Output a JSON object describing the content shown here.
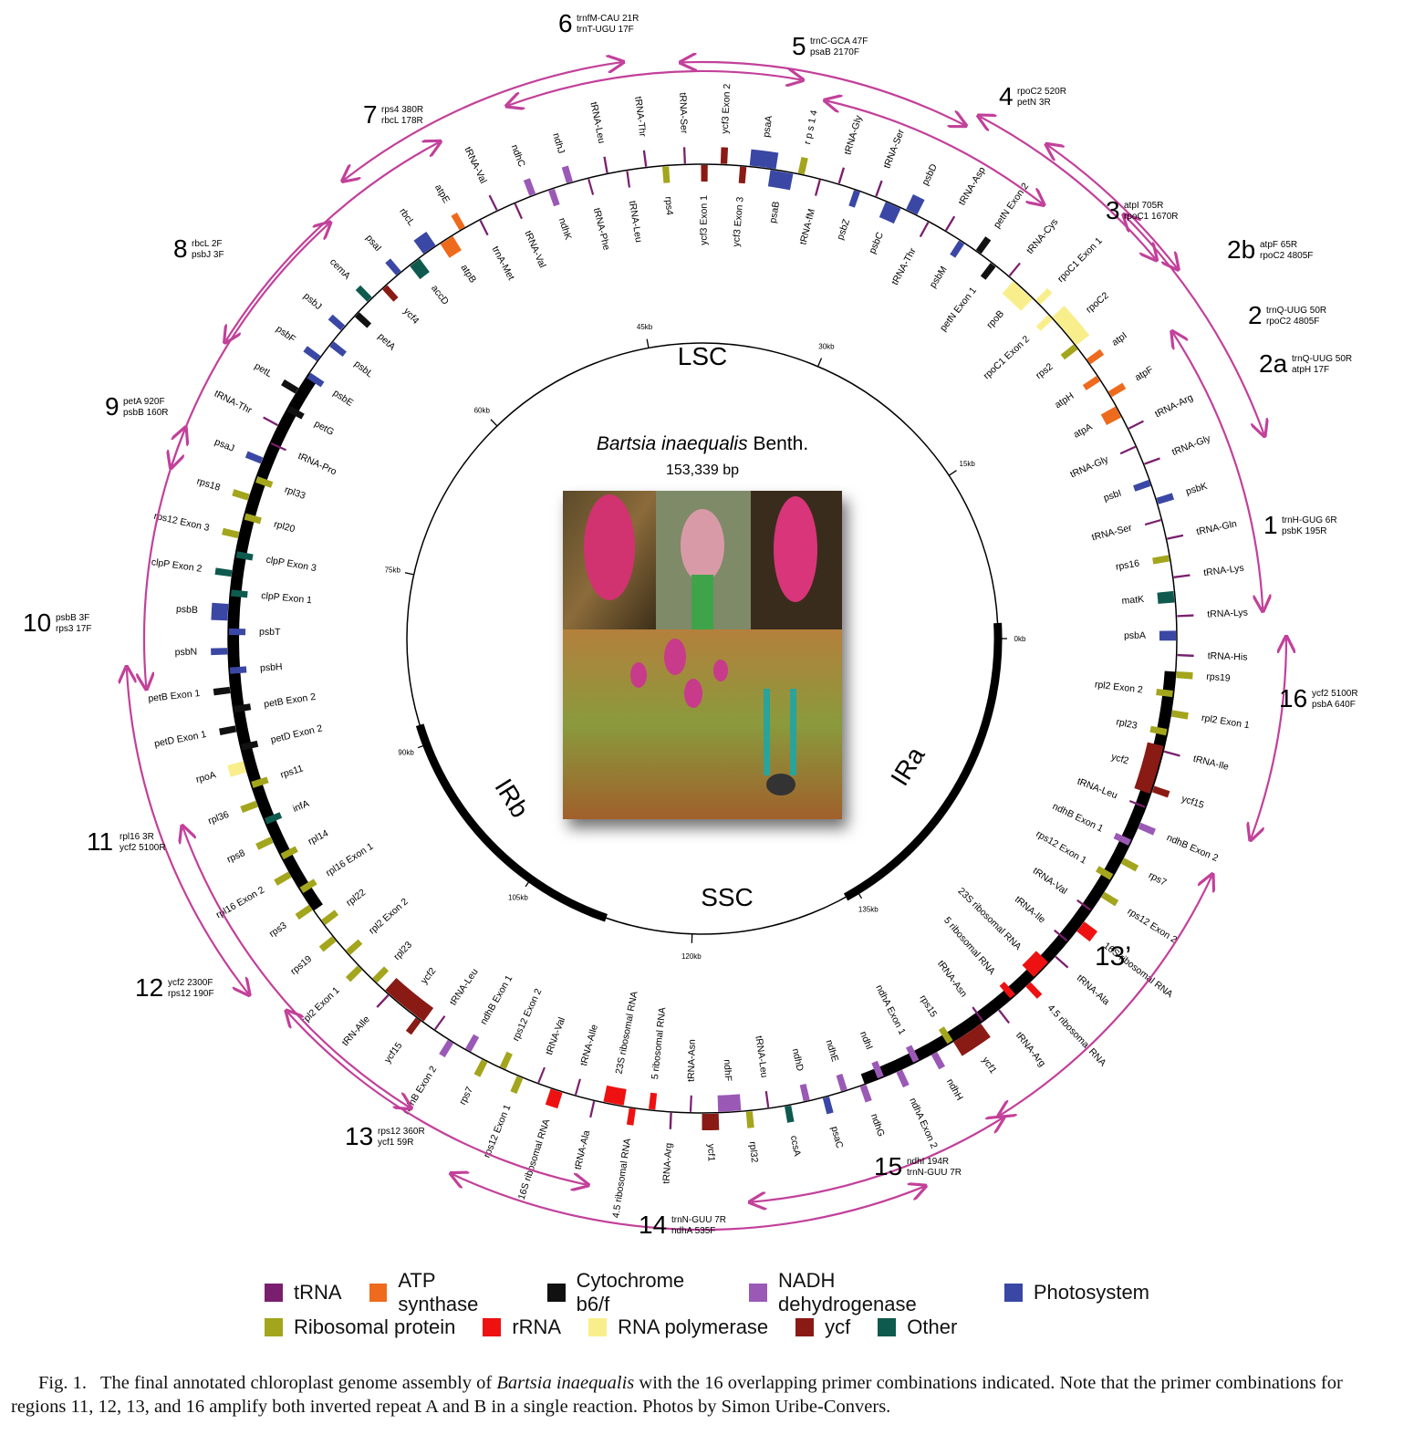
{
  "title": {
    "species": "Bartsia inaequalis",
    "authority": "Benth.",
    "size": "153,339 bp"
  },
  "regions": [
    "LSC",
    "IRa",
    "SSC",
    "IRb"
  ],
  "kb_ticks": [
    "0kb",
    "15kb",
    "30kb",
    "45kb",
    "60kb",
    "75kb",
    "90kb",
    "105kb",
    "120kb",
    "135kb"
  ],
  "label_13prime": "13’",
  "categories": {
    "tRNA": "#7a1f6e",
    "ATP synthase": "#ee6a1c",
    "Cytochrome b6/f": "#111111",
    "NADH dehydrogenase": "#9b59b6",
    "Photosystem": "#3a47a5",
    "Ribosomal protein": "#a3a51c",
    "rRNA": "#ee1111",
    "RNA polymerase": "#f9ee8c",
    "ycf": "#8a1a14",
    "Other": "#0e5a4e"
  },
  "legend": [
    {
      "label": "tRNA",
      "color": "#7a1f6e"
    },
    {
      "label": "ATP synthase",
      "color": "#ee6a1c"
    },
    {
      "label": "Cytochrome b6/f",
      "color": "#111111"
    },
    {
      "label": "NADH dehydrogenase",
      "color": "#9b59b6"
    },
    {
      "label": "Photosystem",
      "color": "#3a47a5"
    },
    {
      "label": "Ribosomal protein",
      "color": "#a3a51c"
    },
    {
      "label": "rRNA",
      "color": "#ee1111"
    },
    {
      "label": "RNA polymerase",
      "color": "#f9ee8c"
    },
    {
      "label": "ycf",
      "color": "#8a1a14"
    },
    {
      "label": "Other",
      "color": "#0e5a4e"
    }
  ],
  "primers": [
    {
      "id": "1",
      "l1": "trnH-GUG 6R",
      "l2": "psbK 195R"
    },
    {
      "id": "2",
      "l1": "trnQ-UUG 50R",
      "l2": "rpoC2 4805F"
    },
    {
      "id": "2a",
      "l1": "trnQ-UUG 50R",
      "l2": "atpH 17F"
    },
    {
      "id": "2b",
      "l1": "atpF 65R",
      "l2": "rpoC2 4805F"
    },
    {
      "id": "3",
      "l1": "atpI 705R",
      "l2": "rpoC1 1670R"
    },
    {
      "id": "4",
      "l1": "rpoC2 520R",
      "l2": "petN 3R"
    },
    {
      "id": "5",
      "l1": "trnC-GCA 47F",
      "l2": "psaB 2170F"
    },
    {
      "id": "6",
      "l1": "trnfM-CAU 21R",
      "l2": "trnT-UGU 17F"
    },
    {
      "id": "7",
      "l1": "rps4 380R",
      "l2": "rbcL 178R"
    },
    {
      "id": "8",
      "l1": "rbcL 2F",
      "l2": "psbJ 3F"
    },
    {
      "id": "9",
      "l1": "petA 920F",
      "l2": "psbB 160R"
    },
    {
      "id": "10",
      "l1": "psbB 3F",
      "l2": "rps3 17F"
    },
    {
      "id": "11",
      "l1": "rpl16 3R",
      "l2": "ycf2 5100R"
    },
    {
      "id": "12",
      "l1": "ycf2 2300F",
      "l2": "rps12 190F"
    },
    {
      "id": "13",
      "l1": "rps12 360R",
      "l2": "ycf1 59R"
    },
    {
      "id": "14",
      "l1": "trnN-GUU 7R",
      "l2": "ndhA 535F"
    },
    {
      "id": "15",
      "l1": "ndhI 194R",
      "l2": "trnN-GUU 7R"
    },
    {
      "id": "16",
      "l1": "ycf2 5100R",
      "l2": "psbA 640F"
    }
  ],
  "genes": [
    {
      "n": "trnH-GUG",
      "l": "tRNA-His",
      "c": "tRNA"
    },
    {
      "n": "psbA",
      "l": "psbA",
      "c": "Photosystem"
    },
    {
      "n": "trnK",
      "l": "tRNA-Lys",
      "c": "tRNA"
    },
    {
      "n": "matK",
      "l": "matK",
      "c": "Other"
    },
    {
      "n": "trnK2",
      "l": "tRNA-Lys",
      "c": "tRNA"
    },
    {
      "n": "rps16",
      "l": "rps16",
      "c": "Ribosomal protein"
    },
    {
      "n": "trnQ",
      "l": "tRNA-Gln",
      "c": "tRNA"
    },
    {
      "n": "trnS",
      "l": "tRNA-Ser",
      "c": "tRNA"
    },
    {
      "n": "psbK",
      "l": "psbK",
      "c": "Photosystem"
    },
    {
      "n": "psbI",
      "l": "psbI",
      "c": "Photosystem"
    },
    {
      "n": "trnG",
      "l": "tRNA-Gly",
      "c": "tRNA"
    },
    {
      "n": "trnG2",
      "l": "tRNA-Gly",
      "c": "tRNA"
    },
    {
      "n": "trnR",
      "l": "tRNA-Arg",
      "c": "tRNA"
    },
    {
      "n": "atpA",
      "l": "atpA",
      "c": "ATP synthase"
    },
    {
      "n": "atpF",
      "l": "atpF",
      "c": "ATP synthase"
    },
    {
      "n": "atpH",
      "l": "atpH",
      "c": "ATP synthase"
    },
    {
      "n": "atpI",
      "l": "atpI",
      "c": "ATP synthase"
    },
    {
      "n": "rps2",
      "l": "rps2",
      "c": "Ribosomal protein"
    },
    {
      "n": "rpoC2",
      "l": "rpoC2",
      "c": "RNA polymerase"
    },
    {
      "n": "rpoC1e2",
      "l": "rpoC1 Exon 2",
      "c": "RNA polymerase"
    },
    {
      "n": "rpoC1e1",
      "l": "rpoC1 Exon 1",
      "c": "RNA polymerase"
    },
    {
      "n": "rpoB",
      "l": "rpoB",
      "c": "RNA polymerase"
    },
    {
      "n": "trnC",
      "l": "tRNA-Cys",
      "c": "tRNA"
    },
    {
      "n": "petNe1",
      "l": "petN Exon 1",
      "c": "Cytochrome b6/f"
    },
    {
      "n": "petNe2",
      "l": "petN Exon 2",
      "c": "Cytochrome b6/f"
    },
    {
      "n": "psbM",
      "l": "psbM",
      "c": "Photosystem"
    },
    {
      "n": "trnD",
      "l": "tRNA-Asp",
      "c": "tRNA"
    },
    {
      "n": "trnT",
      "l": "tRNA-Thr",
      "c": "tRNA"
    },
    {
      "n": "psbD",
      "l": "psbD",
      "c": "Photosystem"
    },
    {
      "n": "psbC",
      "l": "psbC",
      "c": "Photosystem"
    },
    {
      "n": "trnS2",
      "l": "tRNA-Ser",
      "c": "tRNA"
    },
    {
      "n": "psbZ",
      "l": "psbZ",
      "c": "Photosystem"
    },
    {
      "n": "trnG3",
      "l": "tRNA-Gly",
      "c": "tRNA"
    },
    {
      "n": "trnfM",
      "l": "tRNA-fM",
      "c": "tRNA"
    },
    {
      "n": "rps14",
      "l": "r p s 1 4",
      "c": "Ribosomal protein"
    },
    {
      "n": "psaB",
      "l": "psaB",
      "c": "Photosystem"
    },
    {
      "n": "psaA",
      "l": "psaA",
      "c": "Photosystem"
    },
    {
      "n": "ycf3e3",
      "l": "ycf3 Exon 3",
      "c": "ycf"
    },
    {
      "n": "ycf3e2",
      "l": "ycf3 Exon 2",
      "c": "ycf"
    },
    {
      "n": "ycf3e1",
      "l": "ycf3 Exon 1",
      "c": "ycf"
    },
    {
      "n": "trnS3",
      "l": "tRNA-Ser",
      "c": "tRNA"
    },
    {
      "n": "rps4",
      "l": "rps4",
      "c": "Ribosomal protein"
    },
    {
      "n": "trnT2",
      "l": "tRNA-Thr",
      "c": "tRNA"
    },
    {
      "n": "trnL",
      "l": "tRNA-Leu",
      "c": "tRNA"
    },
    {
      "n": "trnL2",
      "l": "tRNA-Leu",
      "c": "tRNA"
    },
    {
      "n": "trnF",
      "l": "tRNA-Phe",
      "c": "tRNA"
    },
    {
      "n": "ndhJ",
      "l": "ndhJ",
      "c": "NADH dehydrogenase"
    },
    {
      "n": "ndhK",
      "l": "ndhK",
      "c": "NADH dehydrogenase"
    },
    {
      "n": "ndhC",
      "l": "ndhC",
      "c": "NADH dehydrogenase"
    },
    {
      "n": "trnV",
      "l": "tRNA-Val",
      "c": "tRNA"
    },
    {
      "n": "trnV2",
      "l": "tRNA-Val",
      "c": "tRNA"
    },
    {
      "n": "trnM",
      "l": "trnA-Met",
      "c": "tRNA"
    },
    {
      "n": "atpE",
      "l": "atpE",
      "c": "ATP synthase"
    },
    {
      "n": "atpB",
      "l": "atpB",
      "c": "ATP synthase"
    },
    {
      "n": "rbcL",
      "l": "rbcL",
      "c": "Photosystem"
    },
    {
      "n": "accD",
      "l": "accD",
      "c": "Other"
    },
    {
      "n": "psaI",
      "l": "psaI",
      "c": "Photosystem"
    },
    {
      "n": "ycf4",
      "l": "ycf4",
      "c": "ycf"
    },
    {
      "n": "cemA",
      "l": "cemA",
      "c": "Other"
    },
    {
      "n": "petA",
      "l": "petA",
      "c": "Cytochrome b6/f"
    },
    {
      "n": "psbJ",
      "l": "psbJ",
      "c": "Photosystem"
    },
    {
      "n": "psbL",
      "l": "psbL",
      "c": "Photosystem"
    },
    {
      "n": "psbF",
      "l": "psbF",
      "c": "Photosystem"
    },
    {
      "n": "psbE",
      "l": "psbE",
      "c": "Photosystem"
    },
    {
      "n": "petL",
      "l": "petL",
      "c": "Cytochrome b6/f"
    },
    {
      "n": "petG",
      "l": "petG",
      "c": "Cytochrome b6/f"
    },
    {
      "n": "trnT3",
      "l": "tRNA-Thr",
      "c": "tRNA"
    },
    {
      "n": "trnP",
      "l": "tRNA-Pro",
      "c": "tRNA"
    },
    {
      "n": "psaJ",
      "l": "psaJ",
      "c": "Photosystem"
    },
    {
      "n": "rpl33",
      "l": "rpl33",
      "c": "Ribosomal protein"
    },
    {
      "n": "rps18",
      "l": "rps18",
      "c": "Ribosomal protein"
    },
    {
      "n": "rpl20",
      "l": "rpl20",
      "c": "Ribosomal protein"
    },
    {
      "n": "rps12e3",
      "l": "rps12 Exon 3",
      "c": "Ribosomal protein"
    },
    {
      "n": "clpPe3",
      "l": "clpP Exon 3",
      "c": "Other"
    },
    {
      "n": "clpPe2",
      "l": "clpP Exon 2",
      "c": "Other"
    },
    {
      "n": "clpPe1",
      "l": "clpP Exon 1",
      "c": "Other"
    },
    {
      "n": "psbB",
      "l": "psbB",
      "c": "Photosystem"
    },
    {
      "n": "psbT",
      "l": "psbT",
      "c": "Photosystem"
    },
    {
      "n": "psbN",
      "l": "psbN",
      "c": "Photosystem"
    },
    {
      "n": "psbH",
      "l": "psbH",
      "c": "Photosystem"
    },
    {
      "n": "petBe1",
      "l": "petB Exon 1",
      "c": "Cytochrome b6/f"
    },
    {
      "n": "petBe2",
      "l": "petB Exon 2",
      "c": "Cytochrome b6/f"
    },
    {
      "n": "petDe1",
      "l": "petD Exon 1",
      "c": "Cytochrome b6/f"
    },
    {
      "n": "petDe2",
      "l": "petD Exon 2",
      "c": "Cytochrome b6/f"
    },
    {
      "n": "rpoA",
      "l": "rpoA",
      "c": "RNA polymerase"
    },
    {
      "n": "rps11",
      "l": "rps11",
      "c": "Ribosomal protein"
    },
    {
      "n": "rpl36",
      "l": "rpl36",
      "c": "Ribosomal protein"
    },
    {
      "n": "infA",
      "l": "infA",
      "c": "Other"
    },
    {
      "n": "rps8",
      "l": "rps8",
      "c": "Ribosomal protein"
    },
    {
      "n": "rpl14",
      "l": "rpl14",
      "c": "Ribosomal protein"
    },
    {
      "n": "rpl16e2",
      "l": "rpl16 Exon 2",
      "c": "Ribosomal protein"
    },
    {
      "n": "rpl16e1",
      "l": "rpl16 Exon 1",
      "c": "Ribosomal protein"
    },
    {
      "n": "rps3",
      "l": "rps3",
      "c": "Ribosomal protein"
    },
    {
      "n": "rpl22",
      "l": "rpl22",
      "c": "Ribosomal protein"
    },
    {
      "n": "rps19b",
      "l": "rps19",
      "c": "Ribosomal protein"
    },
    {
      "n": "rpl2e2b",
      "l": "rpl2 Exon 2",
      "c": "Ribosomal protein"
    },
    {
      "n": "rpl2e1b",
      "l": "rpl2 Exon 1",
      "c": "Ribosomal protein"
    },
    {
      "n": "rpl23b",
      "l": "rpl23",
      "c": "Ribosomal protein"
    },
    {
      "n": "trnIb",
      "l": "tRN-AIle",
      "c": "tRNA"
    },
    {
      "n": "ycf2b",
      "l": "ycf2",
      "c": "ycf"
    },
    {
      "n": "ycf15b",
      "l": "ycf15",
      "c": "ycf"
    },
    {
      "n": "trnLb",
      "l": "tRNA-Leu",
      "c": "tRNA"
    },
    {
      "n": "ndhBe2b",
      "l": "ndhB Exon 2",
      "c": "NADH dehydrogenase"
    },
    {
      "n": "ndhBe1b",
      "l": "ndhB Exon 1",
      "c": "NADH dehydrogenase"
    },
    {
      "n": "rps7b",
      "l": "rps7",
      "c": "Ribosomal protein"
    },
    {
      "n": "rps12e2b",
      "l": "rps12 Exon 2",
      "c": "Ribosomal protein"
    },
    {
      "n": "rps12e1b",
      "l": "rps12 Exon 1",
      "c": "Ribosomal protein"
    },
    {
      "n": "trnVb",
      "l": "tRNA-Val",
      "c": "tRNA"
    },
    {
      "n": "rrn16b",
      "l": "16S ribosomal RNA",
      "c": "rRNA"
    },
    {
      "n": "trnIb2",
      "l": "tRNA-AIle",
      "c": "tRNA"
    },
    {
      "n": "trnAb",
      "l": "tRNA-Ala",
      "c": "tRNA"
    },
    {
      "n": "rrn23b",
      "l": "23S ribosomal RNA",
      "c": "rRNA"
    },
    {
      "n": "rrn45b",
      "l": "4.5 ribosomal RNA",
      "c": "rRNA"
    },
    {
      "n": "rrn5b",
      "l": "5 ribosomal RNA",
      "c": "rRNA"
    },
    {
      "n": "trnRb",
      "l": "tRNA-Arg",
      "c": "tRNA"
    },
    {
      "n": "trnNb",
      "l": "tRNA-Asn",
      "c": "tRNA"
    },
    {
      "n": "ycf1b",
      "l": "ycf1",
      "c": "ycf"
    },
    {
      "n": "ndhF",
      "l": "ndhF",
      "c": "NADH dehydrogenase"
    },
    {
      "n": "rpl32",
      "l": "rpl32",
      "c": "Ribosomal protein"
    },
    {
      "n": "trnL3",
      "l": "tRNA-Leu",
      "c": "tRNA"
    },
    {
      "n": "ccsA",
      "l": "ccsA",
      "c": "Other"
    },
    {
      "n": "ndhD",
      "l": "ndhD",
      "c": "NADH dehydrogenase"
    },
    {
      "n": "psaC",
      "l": "psaC",
      "c": "Photosystem"
    },
    {
      "n": "ndhE",
      "l": "ndhE",
      "c": "NADH dehydrogenase"
    },
    {
      "n": "ndhG",
      "l": "ndhG",
      "c": "NADH dehydrogenase"
    },
    {
      "n": "ndhI",
      "l": "ndhI",
      "c": "NADH dehydrogenase"
    },
    {
      "n": "ndhAe2",
      "l": "ndhA Exon 2",
      "c": "NADH dehydrogenase"
    },
    {
      "n": "ndhAe1",
      "l": "ndhA Exon 1",
      "c": "NADH dehydrogenase"
    },
    {
      "n": "ndhH",
      "l": "ndhH",
      "c": "NADH dehydrogenase"
    },
    {
      "n": "rps15",
      "l": "rps15",
      "c": "Ribosomal protein"
    },
    {
      "n": "ycf1a",
      "l": "ycf1",
      "c": "ycf"
    },
    {
      "n": "trnNa",
      "l": "tRNA-Asn",
      "c": "tRNA"
    },
    {
      "n": "trnRa",
      "l": "tRNA-Arg",
      "c": "tRNA"
    },
    {
      "n": "rrn5a",
      "l": "5 ribosomal RNA",
      "c": "rRNA"
    },
    {
      "n": "rrn45a",
      "l": "4.5 ribosomal RNA",
      "c": "rRNA"
    },
    {
      "n": "rrn23a",
      "l": "23S ribosomal RNA",
      "c": "rRNA"
    },
    {
      "n": "trnAa",
      "l": "tRNA-Ala",
      "c": "tRNA"
    },
    {
      "n": "trnIa2",
      "l": "tRNA-Ile",
      "c": "tRNA"
    },
    {
      "n": "rrn16a",
      "l": "16S ribosomal RNA",
      "c": "rRNA"
    },
    {
      "n": "trnVa",
      "l": "tRNA-Val",
      "c": "tRNA"
    },
    {
      "n": "rps12e2a",
      "l": "rps12 Exon 2",
      "c": "Ribosomal protein"
    },
    {
      "n": "rps12e1a",
      "l": "rps12 Exon 1",
      "c": "Ribosomal protein"
    },
    {
      "n": "rps7a",
      "l": "rps7",
      "c": "Ribosomal protein"
    },
    {
      "n": "ndhBe1a",
      "l": "ndhB Exon 1",
      "c": "NADH dehydrogenase"
    },
    {
      "n": "ndhBe2a",
      "l": "ndhB Exon 2",
      "c": "NADH dehydrogenase"
    },
    {
      "n": "trnLa",
      "l": "tRNA-Leu",
      "c": "tRNA"
    },
    {
      "n": "ycf15a",
      "l": "ycf15",
      "c": "ycf"
    },
    {
      "n": "ycf2a",
      "l": "ycf2",
      "c": "ycf"
    },
    {
      "n": "trnIa",
      "l": "tRNA-Ile",
      "c": "tRNA"
    },
    {
      "n": "rpl23a",
      "l": "rpl23",
      "c": "Ribosomal protein"
    },
    {
      "n": "rpl2e1a",
      "l": "rpl2 Exon 1",
      "c": "Ribosomal protein"
    },
    {
      "n": "rpl2e2a",
      "l": "rpl2 Exon 2",
      "c": "Ribosomal protein"
    },
    {
      "n": "rps19a",
      "l": "rps19",
      "c": "Ribosomal protein"
    }
  ],
  "caption": {
    "prefix": "Fig. 1.",
    "text1": "The final annotated chloroplast genome assembly of ",
    "species": "Bartsia inaequalis",
    "text2": " with the 16 overlapping primer combinations indicated. Note that the primer combinations for regions 11, 12, 13, and 16 amplify both inverted repeat A and B in a single reaction. Photos by Simon Uribe-Convers."
  }
}
